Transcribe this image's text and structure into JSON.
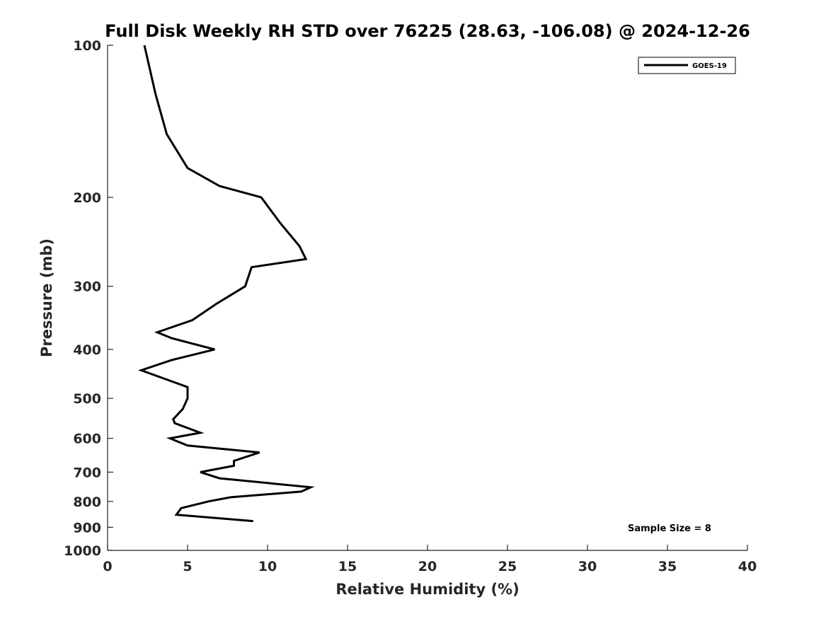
{
  "chart_data": {
    "type": "line",
    "title": "Full Disk Weekly RH STD over 76225 (28.63, -106.08) @ 2024-12-26",
    "xlabel": "Relative Humidity (%)",
    "ylabel": "Pressure (mb)",
    "xlim": [
      0,
      40
    ],
    "ylim": [
      100,
      1000
    ],
    "y_scale": "log",
    "y_reversed": true,
    "x_ticks": [
      0,
      5,
      10,
      15,
      20,
      25,
      30,
      35,
      40
    ],
    "y_ticks": [
      100,
      200,
      300,
      400,
      500,
      600,
      700,
      800,
      900,
      1000
    ],
    "grid": false,
    "legend_position": "top-right",
    "line_color": "#000000",
    "annotation": "Sample Size = 8",
    "series": [
      {
        "name": "GOES-19",
        "points": [
          {
            "rh": 2.3,
            "p": 100
          },
          {
            "rh": 3.0,
            "p": 125
          },
          {
            "rh": 3.7,
            "p": 150
          },
          {
            "rh": 5.0,
            "p": 175
          },
          {
            "rh": 7.0,
            "p": 190
          },
          {
            "rh": 9.6,
            "p": 200
          },
          {
            "rh": 10.8,
            "p": 225
          },
          {
            "rh": 12.0,
            "p": 250
          },
          {
            "rh": 12.4,
            "p": 265
          },
          {
            "rh": 9.0,
            "p": 275
          },
          {
            "rh": 8.6,
            "p": 300
          },
          {
            "rh": 6.8,
            "p": 325
          },
          {
            "rh": 5.3,
            "p": 350
          },
          {
            "rh": 3.1,
            "p": 370
          },
          {
            "rh": 4.0,
            "p": 380
          },
          {
            "rh": 6.7,
            "p": 400
          },
          {
            "rh": 4.0,
            "p": 420
          },
          {
            "rh": 2.1,
            "p": 440
          },
          {
            "rh": 5.0,
            "p": 475
          },
          {
            "rh": 5.0,
            "p": 500
          },
          {
            "rh": 4.7,
            "p": 525
          },
          {
            "rh": 4.1,
            "p": 550
          },
          {
            "rh": 4.2,
            "p": 560
          },
          {
            "rh": 5.8,
            "p": 585
          },
          {
            "rh": 3.9,
            "p": 600
          },
          {
            "rh": 5.0,
            "p": 620
          },
          {
            "rh": 9.5,
            "p": 640
          },
          {
            "rh": 7.9,
            "p": 665
          },
          {
            "rh": 7.9,
            "p": 680
          },
          {
            "rh": 5.8,
            "p": 700
          },
          {
            "rh": 7.0,
            "p": 720
          },
          {
            "rh": 12.7,
            "p": 750
          },
          {
            "rh": 12.1,
            "p": 765
          },
          {
            "rh": 7.7,
            "p": 785
          },
          {
            "rh": 6.3,
            "p": 800
          },
          {
            "rh": 4.6,
            "p": 825
          },
          {
            "rh": 4.3,
            "p": 850
          },
          {
            "rh": 9.1,
            "p": 875
          }
        ]
      }
    ]
  }
}
